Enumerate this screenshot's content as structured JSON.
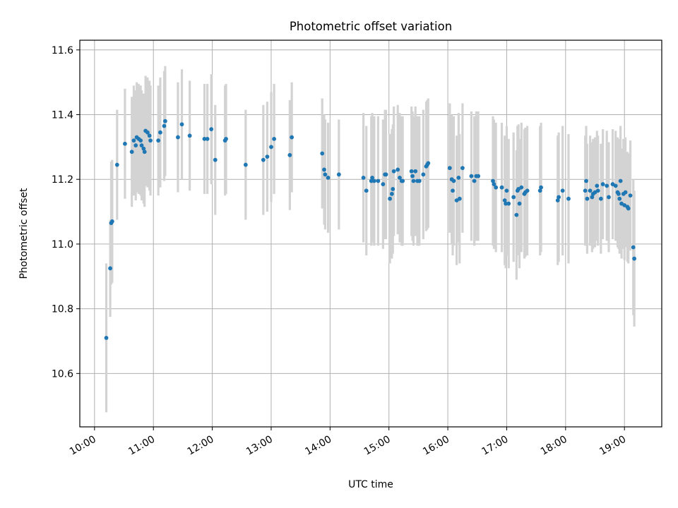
{
  "chart_data": {
    "type": "scatter",
    "title": "Photometric offset variation",
    "xlabel": "UTC time",
    "ylabel": "Photometric offset",
    "x_ticks": [
      "10:00",
      "11:00",
      "12:00",
      "13:00",
      "14:00",
      "15:00",
      "16:00",
      "17:00",
      "18:00",
      "19:00"
    ],
    "y_ticks": [
      "10.6",
      "10.8",
      "11.0",
      "11.2",
      "11.4",
      "11.6"
    ],
    "xlim": [
      "09:45",
      "19:38"
    ],
    "ylim": [
      10.435,
      11.63
    ],
    "grid": true,
    "colors": {
      "points": "#1f77b4",
      "errorbars": "#d3d3d3",
      "grid": "#b0b0b0"
    },
    "series": [
      {
        "points": [
          [
            "10:12",
            10.71,
            0.23
          ],
          [
            "10:16",
            10.925,
            0.15
          ],
          [
            "10:17",
            11.065,
            0.19
          ],
          [
            "10:18",
            11.07,
            0.19
          ],
          [
            "10:23",
            11.245,
            0.17
          ],
          [
            "10:31",
            11.31,
            0.17
          ],
          [
            "10:38",
            11.285,
            0.17
          ],
          [
            "10:40",
            11.32,
            0.17
          ],
          [
            "10:42",
            11.305,
            0.17
          ],
          [
            "10:43",
            11.33,
            0.17
          ],
          [
            "10:45",
            11.325,
            0.17
          ],
          [
            "10:47",
            11.32,
            0.17
          ],
          [
            "10:48",
            11.305,
            0.17
          ],
          [
            "10:50",
            11.295,
            0.17
          ],
          [
            "10:51",
            11.285,
            0.17
          ],
          [
            "10:52",
            11.35,
            0.17
          ],
          [
            "10:54",
            11.345,
            0.17
          ],
          [
            "10:56",
            11.335,
            0.17
          ],
          [
            "10:57",
            11.32,
            0.17
          ],
          [
            "11:05",
            11.32,
            0.17
          ],
          [
            "11:07",
            11.345,
            0.17
          ],
          [
            "11:11",
            11.365,
            0.17
          ],
          [
            "11:12",
            11.38,
            0.17
          ],
          [
            "11:25",
            11.33,
            0.17
          ],
          [
            "11:29",
            11.37,
            0.17
          ],
          [
            "11:37",
            11.335,
            0.17
          ],
          [
            "11:52",
            11.325,
            0.17
          ],
          [
            "11:55",
            11.325,
            0.17
          ],
          [
            "11:59",
            11.355,
            0.17
          ],
          [
            "12:03",
            11.26,
            0.17
          ],
          [
            "12:13",
            11.32,
            0.17
          ],
          [
            "12:14",
            11.325,
            0.17
          ],
          [
            "12:34",
            11.245,
            0.17
          ],
          [
            "12:52",
            11.26,
            0.17
          ],
          [
            "12:56",
            11.27,
            0.17
          ],
          [
            "13:00",
            11.3,
            0.17
          ],
          [
            "13:03",
            11.325,
            0.17
          ],
          [
            "13:19",
            11.275,
            0.17
          ],
          [
            "13:21",
            11.33,
            0.17
          ],
          [
            "13:52",
            11.28,
            0.17
          ],
          [
            "13:54",
            11.23,
            0.17
          ],
          [
            "13:55",
            11.215,
            0.17
          ],
          [
            "13:58",
            11.205,
            0.17
          ],
          [
            "14:09",
            11.215,
            0.17
          ],
          [
            "14:34",
            11.205,
            0.2
          ],
          [
            "14:37",
            11.165,
            0.2
          ],
          [
            "14:42",
            11.195,
            0.2
          ],
          [
            "14:43",
            11.205,
            0.2
          ],
          [
            "14:45",
            11.195,
            0.2
          ],
          [
            "14:49",
            11.195,
            0.2
          ],
          [
            "14:54",
            11.185,
            0.2
          ],
          [
            "14:56",
            11.215,
            0.2
          ],
          [
            "14:57",
            11.215,
            0.2
          ],
          [
            "15:01",
            11.14,
            0.2
          ],
          [
            "15:03",
            11.155,
            0.2
          ],
          [
            "15:04",
            11.17,
            0.2
          ],
          [
            "15:05",
            11.225,
            0.2
          ],
          [
            "15:09",
            11.23,
            0.2
          ],
          [
            "15:11",
            11.205,
            0.2
          ],
          [
            "15:13",
            11.195,
            0.2
          ],
          [
            "15:14",
            11.195,
            0.2
          ],
          [
            "15:23",
            11.225,
            0.2
          ],
          [
            "15:24",
            11.21,
            0.2
          ],
          [
            "15:25",
            11.195,
            0.2
          ],
          [
            "15:27",
            11.225,
            0.2
          ],
          [
            "15:29",
            11.195,
            0.2
          ],
          [
            "15:31",
            11.195,
            0.2
          ],
          [
            "15:35",
            11.215,
            0.2
          ],
          [
            "15:38",
            11.24,
            0.2
          ],
          [
            "15:39",
            11.245,
            0.2
          ],
          [
            "15:40",
            11.25,
            0.2
          ],
          [
            "16:02",
            11.235,
            0.2
          ],
          [
            "16:04",
            11.2,
            0.2
          ],
          [
            "16:05",
            11.165,
            0.2
          ],
          [
            "16:06",
            11.195,
            0.2
          ],
          [
            "16:09",
            11.135,
            0.2
          ],
          [
            "16:11",
            11.205,
            0.2
          ],
          [
            "16:12",
            11.14,
            0.2
          ],
          [
            "16:15",
            11.235,
            0.2
          ],
          [
            "16:24",
            11.21,
            0.2
          ],
          [
            "16:27",
            11.195,
            0.2
          ],
          [
            "16:29",
            11.21,
            0.2
          ],
          [
            "16:31",
            11.21,
            0.2
          ],
          [
            "16:46",
            11.195,
            0.2
          ],
          [
            "16:47",
            11.185,
            0.2
          ],
          [
            "16:49",
            11.175,
            0.2
          ],
          [
            "16:55",
            11.175,
            0.2
          ],
          [
            "16:58",
            11.135,
            0.2
          ],
          [
            "16:59",
            11.125,
            0.2
          ],
          [
            "17:00",
            11.165,
            0.2
          ],
          [
            "17:02",
            11.125,
            0.2
          ],
          [
            "17:07",
            11.145,
            0.2
          ],
          [
            "17:10",
            11.09,
            0.2
          ],
          [
            "17:11",
            11.165,
            0.2
          ],
          [
            "17:12",
            11.17,
            0.2
          ],
          [
            "17:13",
            11.125,
            0.2
          ],
          [
            "17:15",
            11.175,
            0.2
          ],
          [
            "17:18",
            11.155,
            0.2
          ],
          [
            "17:19",
            11.16,
            0.2
          ],
          [
            "17:21",
            11.165,
            0.2
          ],
          [
            "17:34",
            11.165,
            0.2
          ],
          [
            "17:35",
            11.175,
            0.2
          ],
          [
            "17:52",
            11.135,
            0.2
          ],
          [
            "17:53",
            11.145,
            0.2
          ],
          [
            "17:57",
            11.165,
            0.2
          ],
          [
            "18:03",
            11.14,
            0.2
          ],
          [
            "18:20",
            11.165,
            0.17
          ],
          [
            "18:21",
            11.195,
            0.17
          ],
          [
            "18:22",
            11.14,
            0.17
          ],
          [
            "18:25",
            11.165,
            0.17
          ],
          [
            "18:27",
            11.145,
            0.17
          ],
          [
            "18:28",
            11.155,
            0.17
          ],
          [
            "18:30",
            11.16,
            0.17
          ],
          [
            "18:32",
            11.18,
            0.17
          ],
          [
            "18:33",
            11.165,
            0.17
          ],
          [
            "18:36",
            11.14,
            0.17
          ],
          [
            "18:38",
            11.185,
            0.17
          ],
          [
            "18:42",
            11.18,
            0.17
          ],
          [
            "18:44",
            11.145,
            0.17
          ],
          [
            "18:48",
            11.185,
            0.17
          ],
          [
            "18:51",
            11.18,
            0.17
          ],
          [
            "18:53",
            11.16,
            0.17
          ],
          [
            "18:54",
            11.155,
            0.17
          ],
          [
            "18:55",
            11.14,
            0.17
          ],
          [
            "18:56",
            11.195,
            0.17
          ],
          [
            "18:57",
            11.125,
            0.17
          ],
          [
            "18:59",
            11.155,
            0.17
          ],
          [
            "19:00",
            11.12,
            0.17
          ],
          [
            "19:01",
            11.16,
            0.17
          ],
          [
            "19:03",
            11.115,
            0.17
          ],
          [
            "19:04",
            11.11,
            0.17
          ],
          [
            "19:06",
            11.15,
            0.17
          ],
          [
            "19:09",
            10.99,
            0.21
          ],
          [
            "19:10",
            10.955,
            0.21
          ]
        ]
      }
    ]
  }
}
